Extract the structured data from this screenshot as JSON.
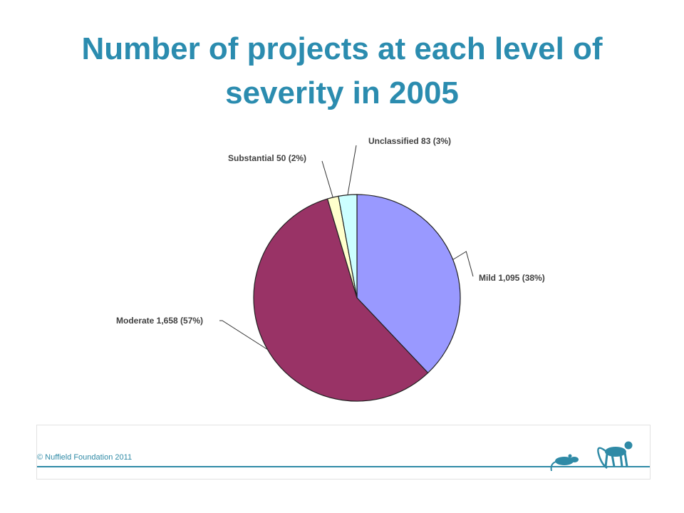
{
  "title": "Number of projects at each level of severity in 2005",
  "footer": {
    "copyright": "© Nuffield Foundation 2011",
    "icons": [
      "rat-silhouette-icon",
      "monkey-silhouette-icon",
      "human-silhouette-icon"
    ],
    "accent_color": "#2f8aa6"
  },
  "colors": {
    "title": "#2b8caf"
  },
  "chart_data": {
    "type": "pie",
    "title": "Number of projects at each level of severity in 2005",
    "slices": [
      {
        "name": "Mild",
        "value": 1095,
        "percent": 38,
        "label": "Mild 1,095 (38%)",
        "color": "#9999ff"
      },
      {
        "name": "Moderate",
        "value": 1658,
        "percent": 57,
        "label": "Moderate 1,658 (57%)",
        "color": "#993366"
      },
      {
        "name": "Substantial",
        "value": 50,
        "percent": 2,
        "label": "Substantial 50 (2%)",
        "color": "#ffffcc"
      },
      {
        "name": "Unclassified",
        "value": 83,
        "percent": 3,
        "label": "Unclassified 83 (3%)",
        "color": "#ccffff"
      }
    ],
    "start_angle": "12 o'clock",
    "direction": "clockwise",
    "legend": "none"
  }
}
